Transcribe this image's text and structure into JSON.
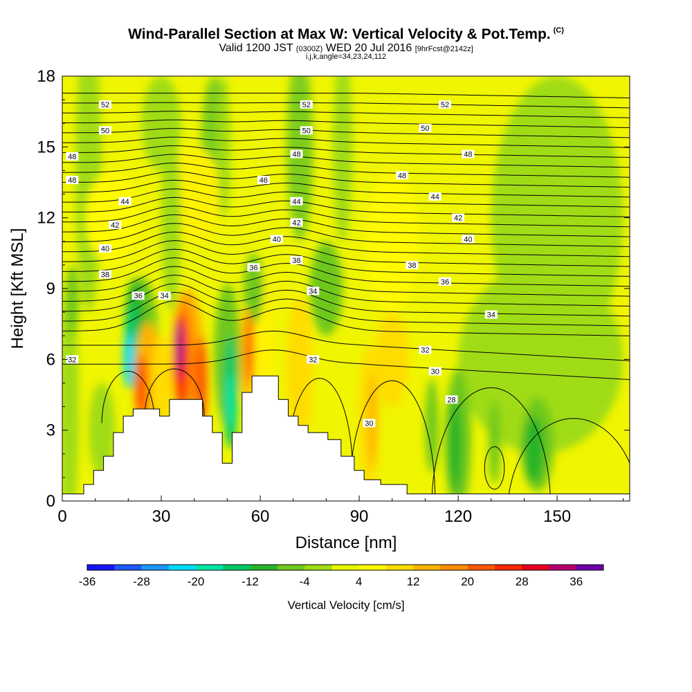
{
  "header": {
    "title": "Wind-Parallel Section at Max W: Vertical Velocity & Pot.Temp.",
    "copyright": "(C)",
    "valid_prefix": "Valid 1200 JST",
    "utc": "(0300Z)",
    "date": "WED 20 Jul 2016",
    "forecast": "[9hrFcst@2142z]",
    "ijk": "i,j,k,angle=34,23,24,112"
  },
  "chart_data": {
    "type": "heatmap",
    "xlabel": "Distance [nm]",
    "ylabel": "Height [Kft MSL]",
    "xlim": [
      0,
      172
    ],
    "ylim": [
      0,
      18
    ],
    "xticks": [
      0,
      30,
      60,
      90,
      120,
      150
    ],
    "yticks": [
      0,
      3,
      6,
      9,
      12,
      15,
      18
    ],
    "colorbar": {
      "label": "Vertical Velocity [cm/s]",
      "tick_labels": [
        "-36",
        "-28",
        "-20",
        "-12",
        "-4",
        "4",
        "12",
        "20",
        "28",
        "36"
      ],
      "colors": [
        "#1414ff",
        "#1e5aff",
        "#1e96ff",
        "#00dcff",
        "#00e6a5",
        "#00c864",
        "#28b428",
        "#6ec81e",
        "#a0dc14",
        "#e6f500",
        "#fffa00",
        "#ffdc00",
        "#ffb400",
        "#ff8c00",
        "#ff5a00",
        "#ff2800",
        "#e6001e",
        "#b4006e",
        "#6e00aa"
      ]
    },
    "theta_labels": [
      {
        "x": 13,
        "y": 16.8,
        "v": "52"
      },
      {
        "x": 74,
        "y": 16.8,
        "v": "52"
      },
      {
        "x": 116,
        "y": 16.8,
        "v": "52"
      },
      {
        "x": 13,
        "y": 15.7,
        "v": "50"
      },
      {
        "x": 74,
        "y": 15.7,
        "v": "50"
      },
      {
        "x": 110,
        "y": 15.8,
        "v": "50"
      },
      {
        "x": 3,
        "y": 14.6,
        "v": "48"
      },
      {
        "x": 71,
        "y": 14.7,
        "v": "48"
      },
      {
        "x": 103,
        "y": 13.8,
        "v": "48"
      },
      {
        "x": 123,
        "y": 14.7,
        "v": "48"
      },
      {
        "x": 3,
        "y": 13.6,
        "v": "48"
      },
      {
        "x": 61,
        "y": 13.6,
        "v": "46"
      },
      {
        "x": 19,
        "y": 12.7,
        "v": "44"
      },
      {
        "x": 71,
        "y": 12.7,
        "v": "44"
      },
      {
        "x": 113,
        "y": 12.9,
        "v": "44"
      },
      {
        "x": 16,
        "y": 11.7,
        "v": "42"
      },
      {
        "x": 71,
        "y": 11.8,
        "v": "42"
      },
      {
        "x": 120,
        "y": 12.0,
        "v": "42"
      },
      {
        "x": 13,
        "y": 10.7,
        "v": "40"
      },
      {
        "x": 65,
        "y": 11.1,
        "v": "40"
      },
      {
        "x": 123,
        "y": 11.1,
        "v": "40"
      },
      {
        "x": 13,
        "y": 9.6,
        "v": "38"
      },
      {
        "x": 71,
        "y": 10.2,
        "v": "38"
      },
      {
        "x": 106,
        "y": 10.0,
        "v": "38"
      },
      {
        "x": 58,
        "y": 9.9,
        "v": "36"
      },
      {
        "x": 116,
        "y": 9.3,
        "v": "36"
      },
      {
        "x": 23,
        "y": 8.7,
        "v": "36"
      },
      {
        "x": 31,
        "y": 8.7,
        "v": "34"
      },
      {
        "x": 76,
        "y": 8.9,
        "v": "34"
      },
      {
        "x": 130,
        "y": 7.9,
        "v": "34"
      },
      {
        "x": 3,
        "y": 6.0,
        "v": "32"
      },
      {
        "x": 76,
        "y": 6.0,
        "v": "32"
      },
      {
        "x": 110,
        "y": 6.4,
        "v": "32"
      },
      {
        "x": 113,
        "y": 5.5,
        "v": "30"
      },
      {
        "x": 93,
        "y": 3.3,
        "v": "30"
      },
      {
        "x": 118,
        "y": 4.3,
        "v": "28"
      }
    ],
    "terrain_kft": [
      [
        0,
        0.3
      ],
      [
        6.5,
        0.3
      ],
      [
        6.5,
        0.7
      ],
      [
        9.5,
        0.7
      ],
      [
        9.5,
        1.3
      ],
      [
        12.5,
        1.3
      ],
      [
        12.5,
        1.9
      ],
      [
        15.5,
        1.9
      ],
      [
        15.5,
        2.9
      ],
      [
        18.5,
        2.9
      ],
      [
        18.5,
        3.6
      ],
      [
        21.5,
        3.6
      ],
      [
        21.5,
        3.9
      ],
      [
        29.5,
        3.9
      ],
      [
        29.5,
        3.6
      ],
      [
        32.5,
        3.6
      ],
      [
        32.5,
        4.3
      ],
      [
        42.5,
        4.3
      ],
      [
        42.5,
        3.6
      ],
      [
        45.5,
        3.6
      ],
      [
        45.5,
        2.9
      ],
      [
        48.5,
        2.9
      ],
      [
        48.5,
        1.6
      ],
      [
        51.5,
        1.6
      ],
      [
        51.5,
        2.9
      ],
      [
        54.5,
        2.9
      ],
      [
        54.5,
        4.6
      ],
      [
        57.5,
        4.6
      ],
      [
        57.5,
        5.3
      ],
      [
        65.5,
        5.3
      ],
      [
        65.5,
        4.3
      ],
      [
        68.5,
        4.3
      ],
      [
        68.5,
        3.6
      ],
      [
        71.5,
        3.6
      ],
      [
        71.5,
        3.2
      ],
      [
        74.5,
        3.2
      ],
      [
        74.5,
        2.9
      ],
      [
        80.5,
        2.9
      ],
      [
        80.5,
        2.6
      ],
      [
        84.5,
        2.6
      ],
      [
        84.5,
        1.9
      ],
      [
        88.5,
        1.9
      ],
      [
        88.5,
        1.3
      ],
      [
        91.5,
        1.3
      ],
      [
        91.5,
        0.9
      ],
      [
        96.5,
        0.9
      ],
      [
        96.5,
        0.7
      ],
      [
        104.5,
        0.7
      ],
      [
        104.5,
        0.3
      ],
      [
        172,
        0.3
      ]
    ]
  }
}
